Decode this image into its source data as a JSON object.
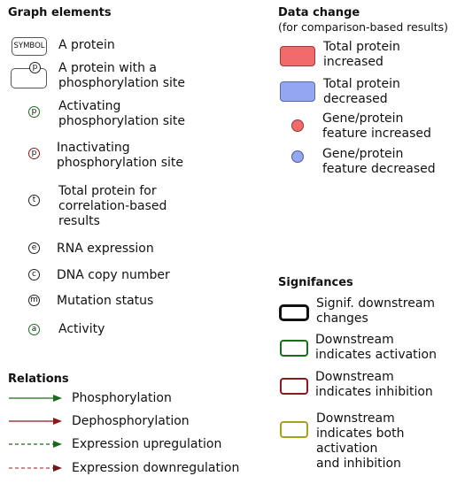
{
  "graph_elements": {
    "heading": "Graph elements",
    "symbol_text": "SYMBOL",
    "protein": "A protein",
    "phospho_site_letter": "p",
    "protein_phospho": "A protein with a\nphosphorylation site",
    "activating": "Activating\nphosphorylation site",
    "inactivating": "Inactivating\nphosphorylation site",
    "total_letter": "t",
    "total_protein": "Total protein for\ncorrelation-based\nresults",
    "rna_letter": "e",
    "rna": "RNA expression",
    "dna_letter": "c",
    "dna": "DNA copy number",
    "mutation_letter": "m",
    "mutation": "Mutation status",
    "activity_letter": "a",
    "activity": "Activity"
  },
  "relations": {
    "heading": "Relations",
    "phosphorylation": "Phosphorylation",
    "dephosphorylation": "Dephosphorylation",
    "expr_up": "Expression upregulation",
    "expr_down": "Expression downregulation"
  },
  "data_change": {
    "heading": "Data change",
    "subheading": "(for comparison-based results)",
    "total_increased": "Total protein\nincreased",
    "total_decreased": "Total protein\ndecreased",
    "gene_increased": "Gene/protein\nfeature increased",
    "gene_decreased": "Gene/protein\nfeature decreased"
  },
  "significances": {
    "heading": "Signifances",
    "signif": "Signif. downstream\nchanges",
    "activation": "Downstream\nindicates activation",
    "inhibition": "Downstream\nindicates inhibition",
    "both": "Downstream\nindicates both\nactivation\nand inhibition"
  },
  "colors": {
    "increase": "#f26b6b",
    "decrease": "#94a5f2",
    "green": "#1a6b1a",
    "dark_red": "#8b1a1a",
    "olive": "#a3a31a"
  }
}
